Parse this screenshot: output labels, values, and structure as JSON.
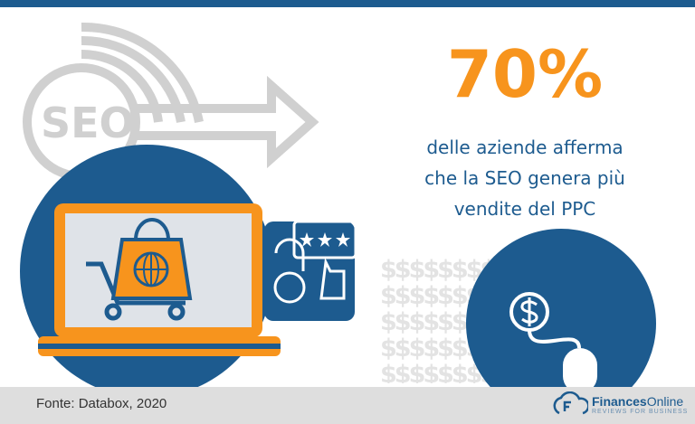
{
  "stat": {
    "value": "70%",
    "description_lines": [
      "delle aziende afferma",
      "che la SEO genera più",
      "vendite del PPC"
    ]
  },
  "illustration": {
    "seo_label": "SEO",
    "icons": [
      "seo-arrow-icon",
      "laptop-icon",
      "shopping-cart-icon",
      "shopping-bag-globe-icon",
      "award-bag-icon",
      "thumbs-up-rating-icon",
      "dollar-mouse-icon"
    ]
  },
  "footer": {
    "source": "Fonte: Databox, 2020",
    "brand_bold": "Finances",
    "brand_regular": "Online",
    "brand_tagline": "REVIEWS FOR BUSINESS"
  },
  "colors": {
    "blue": "#1d5b8f",
    "orange": "#f7941d",
    "gray": "#dedede"
  }
}
